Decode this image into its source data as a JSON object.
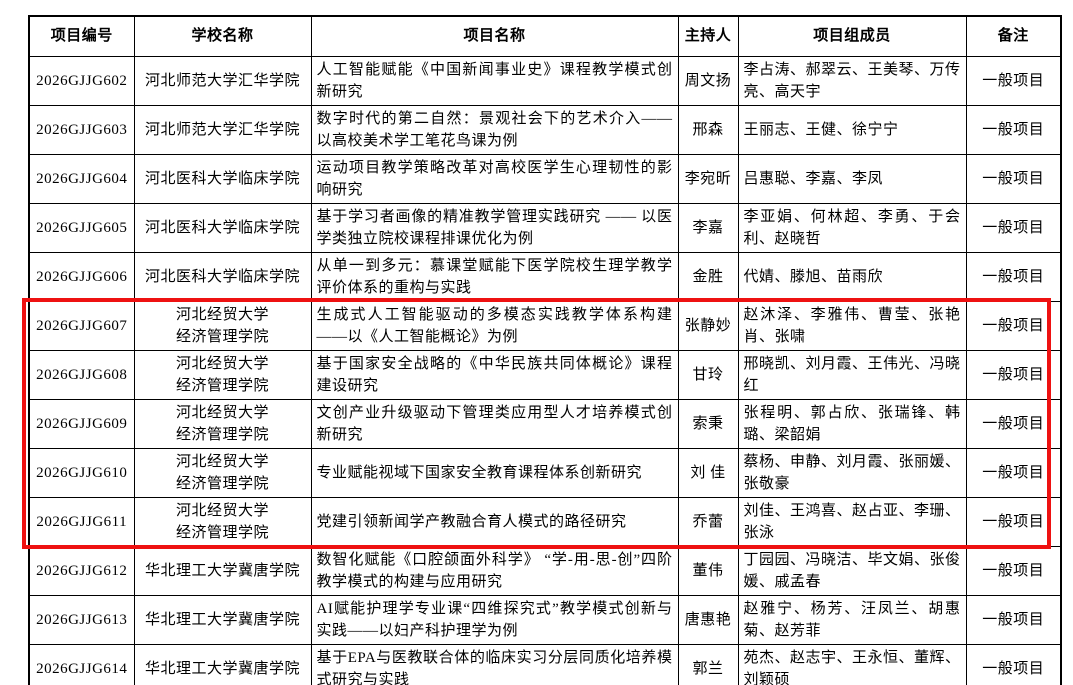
{
  "page": {
    "background": "#ffffff",
    "text_color": "#000000",
    "border_color": "#000000"
  },
  "highlight": {
    "color": "#ee1111",
    "note": "red annotation rectangle around rows 2026GJJG607 to 2026GJJG611"
  },
  "table": {
    "headers": [
      {
        "key": "id",
        "label": "项目编号"
      },
      {
        "key": "school",
        "label": "学校名称"
      },
      {
        "key": "title",
        "label": "项目名称"
      },
      {
        "key": "leader",
        "label": "主持人"
      },
      {
        "key": "members",
        "label": "项目组成员"
      },
      {
        "key": "note",
        "label": "备注"
      }
    ],
    "rows": [
      {
        "id": "2026GJJG602",
        "school_lines": [
          "河北师范大学汇华学院"
        ],
        "title": "人工智能赋能《中国新闻事业史》课程教学模式创新研究",
        "leader": "周文扬",
        "members": "李占涛、郝翠云、王美琴、万传亮、高天宇",
        "note": "一般项目",
        "highlighted": false
      },
      {
        "id": "2026GJJG603",
        "school_lines": [
          "河北师范大学汇华学院"
        ],
        "title": "数字时代的第二自然：景观社会下的艺术介入——以高校美术学工笔花鸟课为例",
        "leader": "邢森",
        "members": "王丽志、王健、徐宁宁",
        "note": "一般项目",
        "highlighted": false
      },
      {
        "id": "2026GJJG604",
        "school_lines": [
          "河北医科大学临床学院"
        ],
        "title": "运动项目教学策略改革对高校医学生心理韧性的影响研究",
        "leader": "李宛昕",
        "members": "吕惠聪、李嘉、李凤",
        "note": "一般项目",
        "highlighted": false
      },
      {
        "id": "2026GJJG605",
        "school_lines": [
          "河北医科大学临床学院"
        ],
        "title": "基于学习者画像的精准教学管理实践研究 —— 以医学类独立院校课程排课优化为例",
        "leader": "李嘉",
        "members": "李亚娟、何林超、李勇、于会利、赵晓哲",
        "note": "一般项目",
        "highlighted": false
      },
      {
        "id": "2026GJJG606",
        "school_lines": [
          "河北医科大学临床学院"
        ],
        "title": "从单一到多元：慕课堂赋能下医学院校生理学教学评价体系的重构与实践",
        "leader": "金胜",
        "members": "代婧、滕旭、苗雨欣",
        "note": "一般项目",
        "highlighted": false
      },
      {
        "id": "2026GJJG607",
        "school_lines": [
          "河北经贸大学",
          "经济管理学院"
        ],
        "title": "生成式人工智能驱动的多模态实践教学体系构建——以《人工智能概论》为例",
        "leader": "张静妙",
        "members": "赵沐泽、李雅伟、曹莹、张艳肖、张啸",
        "note": "一般项目",
        "highlighted": true
      },
      {
        "id": "2026GJJG608",
        "school_lines": [
          "河北经贸大学",
          "经济管理学院"
        ],
        "title": "基于国家安全战略的《中华民族共同体概论》课程建设研究",
        "leader": "甘玲",
        "members": "邢晓凯、刘月霞、王伟光、冯晓红",
        "note": "一般项目",
        "highlighted": true
      },
      {
        "id": "2026GJJG609",
        "school_lines": [
          "河北经贸大学",
          "经济管理学院"
        ],
        "title": "文创产业升级驱动下管理类应用型人才培养模式创新研究",
        "leader": "索秉",
        "members": "张程明、郭占欣、张瑞锋、韩璐、梁韶娟",
        "note": "一般项目",
        "highlighted": true
      },
      {
        "id": "2026GJJG610",
        "school_lines": [
          "河北经贸大学",
          "经济管理学院"
        ],
        "title": "专业赋能视域下国家安全教育课程体系创新研究",
        "leader": "刘 佳",
        "members": "蔡杨、申静、刘月霞、张丽媛、张敬豪",
        "note": "一般项目",
        "highlighted": true
      },
      {
        "id": "2026GJJG611",
        "school_lines": [
          "河北经贸大学",
          "经济管理学院"
        ],
        "title": "党建引领新闻学产教融合育人模式的路径研究",
        "leader": "乔蕾",
        "members": "刘佳、王鸿喜、赵占亚、李珊、张泳",
        "note": "一般项目",
        "highlighted": true
      },
      {
        "id": "2026GJJG612",
        "school_lines": [
          "华北理工大学冀唐学院"
        ],
        "title": "数智化赋能《口腔颌面外科学》 “学-用-思-创”四阶教学模式的构建与应用研究",
        "leader": "董伟",
        "members": "丁园园、冯晓洁、毕文娟、张俊媛、戚孟春",
        "note": "一般项目",
        "highlighted": false
      },
      {
        "id": "2026GJJG613",
        "school_lines": [
          "华北理工大学冀唐学院"
        ],
        "title": "AI赋能护理学专业课“四维探究式”教学模式创新与实践——以妇产科护理学为例",
        "leader": "唐惠艳",
        "members": "赵雅宁、杨芳、汪凤兰、胡惠菊、赵芳菲",
        "note": "一般项目",
        "highlighted": false
      },
      {
        "id": "2026GJJG614",
        "school_lines": [
          "华北理工大学冀唐学院"
        ],
        "title": "基于EPA与医教联合体的临床实习分层同质化培养模式研究与实践",
        "leader": "郭兰",
        "members": "苑杰、赵志宇、王永恒、董辉、刘颖硕",
        "note": "一般项目",
        "highlighted": false
      }
    ]
  }
}
